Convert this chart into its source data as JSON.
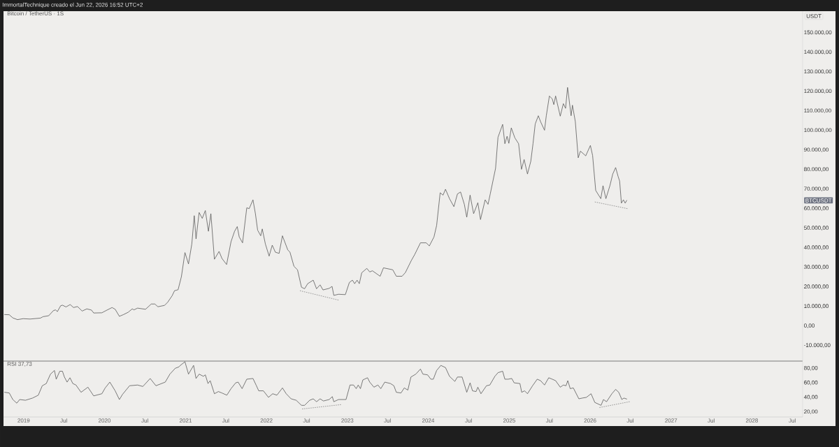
{
  "chart_data": [
    {
      "type": "line",
      "title": "Bitcoin / TetherUS · 1S",
      "ylabel": "USDT",
      "annotations": [
        "ImmortalTechnique creado el Jun 22, 2026 16:52 UTC+2",
        "BTCUSDT"
      ],
      "xlim": [
        "2018-10-02",
        "2028-08-17"
      ],
      "ylim": [
        -18000,
        161000
      ],
      "yticks": [
        {
          "value": -10000,
          "label": "-10.000,00"
        },
        {
          "value": 0,
          "label": "0,00"
        },
        {
          "value": 10000,
          "label": "10.000,00"
        },
        {
          "value": 20000,
          "label": "20.000,00"
        },
        {
          "value": 30000,
          "label": "30.000,00"
        },
        {
          "value": 40000,
          "label": "40.000,00"
        },
        {
          "value": 50000,
          "label": "50.000,00"
        },
        {
          "value": 60000,
          "label": "60.000,00"
        },
        {
          "value": 70000,
          "label": "70.000,00"
        },
        {
          "value": 80000,
          "label": "80.000,00"
        },
        {
          "value": 90000,
          "label": "90.000,00"
        },
        {
          "value": 100000,
          "label": "100.000,00"
        },
        {
          "value": 110000,
          "label": "110.000,00"
        },
        {
          "value": 120000,
          "label": "120.000,00"
        },
        {
          "value": 130000,
          "label": "130.000,00"
        },
        {
          "value": 140000,
          "label": "140.000,00"
        },
        {
          "value": 150000,
          "label": "150.000,00"
        }
      ],
      "tick_labels": "y",
      "series": [
        {
          "color": "#505050",
          "x": [
            "2018-10-07",
            "2018-10-28",
            "2018-11-13",
            "2018-12-04",
            "2018-12-30",
            "2019-01-30",
            "2019-03-18",
            "2019-03-29",
            "2019-04-24",
            "2019-05-15",
            "2019-05-25",
            "2019-06-02",
            "2019-06-17",
            "2019-06-25",
            "2019-07-11",
            "2019-07-30",
            "2019-08-14",
            "2019-09-01",
            "2019-09-22",
            "2019-10-13",
            "2019-11-03",
            "2019-11-13",
            "2019-12-20",
            "2020-01-09",
            "2020-02-04",
            "2020-02-18",
            "2020-03-08",
            "2020-03-27",
            "2020-04-17",
            "2020-05-05",
            "2020-05-13",
            "2020-05-29",
            "2020-07-04",
            "2020-07-30",
            "2020-08-15",
            "2020-08-29",
            "2020-09-28",
            "2020-10-12",
            "2020-11-01",
            "2020-11-12",
            "2020-11-28",
            "2020-12-13",
            "2020-12-29",
            "2021-01-14",
            "2021-01-29",
            "2021-02-09",
            "2021-02-17",
            "2021-03-03",
            "2021-03-17",
            "2021-03-31",
            "2021-04-14",
            "2021-04-25",
            "2021-05-11",
            "2021-06-01",
            "2021-06-14",
            "2021-07-05",
            "2021-07-25",
            "2021-08-10",
            "2021-08-22",
            "2021-08-31",
            "2021-09-15",
            "2021-10-04",
            "2021-10-15",
            "2021-11-01",
            "2021-11-12",
            "2021-11-22",
            "2021-12-06",
            "2021-12-13",
            "2021-12-27",
            "2022-01-13",
            "2022-01-27",
            "2022-02-10",
            "2022-02-27",
            "2022-03-14",
            "2022-04-07",
            "2022-04-17",
            "2022-05-05",
            "2022-05-21",
            "2022-06-08",
            "2022-06-22",
            "2022-07-06",
            "2022-07-31",
            "2022-08-15",
            "2022-08-31",
            "2022-09-13",
            "2022-10-11",
            "2022-10-24",
            "2022-11-01",
            "2022-11-22",
            "2022-12-23",
            "2023-01-10",
            "2023-01-24",
            "2023-02-03",
            "2023-02-14",
            "2023-02-24",
            "2023-03-07",
            "2023-03-30",
            "2023-04-12",
            "2023-04-24",
            "2023-05-29",
            "2023-06-13",
            "2023-07-25",
            "2023-08-10",
            "2023-09-05",
            "2023-09-20",
            "2023-10-17",
            "2023-11-01",
            "2023-11-27",
            "2023-12-23",
            "2024-01-06",
            "2024-01-27",
            "2024-02-08",
            "2024-02-24",
            "2024-03-08",
            "2024-03-19",
            "2024-04-06",
            "2024-04-26",
            "2024-05-12",
            "2024-05-26",
            "2024-06-12",
            "2024-06-23",
            "2024-07-08",
            "2024-07-24",
            "2024-08-12",
            "2024-08-24",
            "2024-09-14",
            "2024-09-27",
            "2024-10-07",
            "2024-10-31",
            "2024-11-11",
            "2024-12-02",
            "2024-12-12",
            "2024-12-22",
            "2024-12-30",
            "2025-01-10",
            "2025-01-26",
            "2025-02-12",
            "2025-02-25",
            "2025-03-09",
            "2025-03-24",
            "2025-04-08",
            "2025-04-18",
            "2025-04-28",
            "2025-05-12",
            "2025-05-22",
            "2025-06-09",
            "2025-06-17",
            "2025-07-01",
            "2025-07-14",
            "2025-07-21",
            "2025-07-29",
            "2025-08-19",
            "2025-09-02",
            "2025-09-12",
            "2025-09-21",
            "2025-10-07",
            "2025-10-13",
            "2025-10-26",
            "2025-11-08",
            "2025-11-18",
            "2025-12-12",
            "2026-01-02",
            "2026-01-12",
            "2026-01-26",
            "2026-02-18",
            "2026-02-28",
            "2026-03-13",
            "2026-03-31",
            "2026-04-13",
            "2026-04-26",
            "2026-05-07",
            "2026-05-14",
            "2026-05-22",
            "2026-05-31",
            "2026-06-08",
            "2026-06-15"
          ],
          "values": [
            5800,
            5700,
            4100,
            3200,
            3700,
            3500,
            4000,
            4700,
            5200,
            7800,
            8200,
            7300,
            10300,
            10600,
            9700,
            10900,
            9400,
            9900,
            7600,
            8700,
            8100,
            6600,
            6700,
            7900,
            9400,
            8500,
            4900,
            5800,
            7000,
            8700,
            8200,
            9100,
            8500,
            11200,
            11200,
            9800,
            10500,
            12100,
            15400,
            18000,
            18500,
            25200,
            37500,
            31700,
            41900,
            56400,
            44500,
            58000,
            55000,
            59000,
            48400,
            57400,
            34100,
            38100,
            34500,
            31400,
            43100,
            48400,
            50800,
            45500,
            42500,
            60400,
            60000,
            64500,
            57400,
            49000,
            46100,
            49600,
            41900,
            35700,
            41300,
            37700,
            37100,
            46100,
            38900,
            37700,
            30500,
            28700,
            19800,
            19000,
            21600,
            23400,
            19000,
            21000,
            18400,
            19200,
            20200,
            15600,
            16200,
            16000,
            22200,
            23400,
            21600,
            23400,
            21600,
            27200,
            29400,
            27600,
            28200,
            25400,
            29700,
            28700,
            25400,
            25400,
            27300,
            33500,
            36500,
            42500,
            42500,
            40900,
            45500,
            51400,
            68100,
            66900,
            69900,
            65100,
            61000,
            67500,
            68500,
            62200,
            55600,
            66900,
            57400,
            63000,
            54400,
            64500,
            62200,
            67500,
            80600,
            96500,
            103100,
            93200,
            97000,
            93400,
            101300,
            96200,
            93200,
            80100,
            85100,
            77700,
            84200,
            93200,
            103300,
            107500,
            104500,
            100100,
            107500,
            117600,
            116100,
            113200,
            117600,
            107300,
            113700,
            111300,
            122000,
            107500,
            112900,
            104500,
            86000,
            89400,
            87000,
            92300,
            87200,
            69300,
            65100,
            71700,
            65100,
            71700,
            77700,
            81000,
            76500,
            74100,
            62800,
            64500,
            62800,
            64200
          ]
        },
        {
          "type": "line",
          "line_style": "dotted",
          "color": "#808080",
          "x": [
            "2022-06-01",
            "2022-11-22"
          ],
          "values": [
            18000,
            13200
          ]
        },
        {
          "type": "line",
          "line_style": "dotted",
          "color": "#808080",
          "x": [
            "2026-01-22",
            "2026-06-18"
          ],
          "values": [
            63400,
            60000
          ]
        }
      ]
    },
    {
      "type": "line",
      "title": "RSI 37,73",
      "xlim": [
        "2018-10-02",
        "2028-08-17"
      ],
      "ylim": [
        13,
        89
      ],
      "xticks": [
        {
          "value": "2019-01-01",
          "label": "2019"
        },
        {
          "value": "2019-07-01",
          "label": "Jul"
        },
        {
          "value": "2020-01-01",
          "label": "2020"
        },
        {
          "value": "2020-07-01",
          "label": "Jul"
        },
        {
          "value": "2021-01-01",
          "label": "2021"
        },
        {
          "value": "2021-07-01",
          "label": "Jul"
        },
        {
          "value": "2022-01-01",
          "label": "2022"
        },
        {
          "value": "2022-07-01",
          "label": "Jul"
        },
        {
          "value": "2023-01-01",
          "label": "2023"
        },
        {
          "value": "2023-07-01",
          "label": "Jul"
        },
        {
          "value": "2024-01-01",
          "label": "2024"
        },
        {
          "value": "2024-07-01",
          "label": "Jul"
        },
        {
          "value": "2025-01-01",
          "label": "2025"
        },
        {
          "value": "2025-07-01",
          "label": "Jul"
        },
        {
          "value": "2026-01-01",
          "label": "2026"
        },
        {
          "value": "2026-07-01",
          "label": "Jul"
        },
        {
          "value": "2027-01-01",
          "label": "2027"
        },
        {
          "value": "2027-07-01",
          "label": "Jul"
        },
        {
          "value": "2028-01-01",
          "label": "2028"
        },
        {
          "value": "2028-07-01",
          "label": "Jul"
        }
      ],
      "yticks": [
        {
          "value": 20,
          "label": "20,00"
        },
        {
          "value": 40,
          "label": "40,00"
        },
        {
          "value": 60,
          "label": "60,00"
        },
        {
          "value": 80,
          "label": "80,00"
        }
      ],
      "series": [
        {
          "color": "#505050",
          "x": [
            "2018-10-07",
            "2018-10-28",
            "2018-11-13",
            "2018-12-01",
            "2018-12-14",
            "2019-01-09",
            "2019-02-10",
            "2019-03-08",
            "2019-03-26",
            "2019-04-13",
            "2019-05-02",
            "2019-05-20",
            "2019-05-28",
            "2019-06-13",
            "2019-06-25",
            "2019-07-04",
            "2019-07-16",
            "2019-07-29",
            "2019-08-11",
            "2019-08-25",
            "2019-09-17",
            "2019-10-18",
            "2019-11-13",
            "2019-12-20",
            "2020-01-04",
            "2020-01-25",
            "2020-02-18",
            "2020-03-08",
            "2020-03-22",
            "2020-04-23",
            "2020-05-29",
            "2020-06-22",
            "2020-07-25",
            "2020-08-20",
            "2020-10-01",
            "2020-10-22",
            "2020-11-15",
            "2020-12-02",
            "2020-12-08",
            "2020-12-29",
            "2021-01-14",
            "2021-02-06",
            "2021-02-17",
            "2021-03-03",
            "2021-03-22",
            "2021-03-31",
            "2021-04-12",
            "2021-04-22",
            "2021-05-11",
            "2021-05-29",
            "2021-06-14",
            "2021-07-06",
            "2021-07-25",
            "2021-08-15",
            "2021-08-26",
            "2021-09-13",
            "2021-10-04",
            "2021-11-01",
            "2021-11-15",
            "2021-11-27",
            "2021-12-18",
            "2022-01-10",
            "2022-01-29",
            "2022-02-17",
            "2022-03-14",
            "2022-03-31",
            "2022-04-22",
            "2022-05-15",
            "2022-06-08",
            "2022-06-22",
            "2022-07-15",
            "2022-07-31",
            "2022-08-15",
            "2022-08-31",
            "2022-09-15",
            "2022-10-11",
            "2022-10-25",
            "2022-11-01",
            "2022-11-22",
            "2022-12-26",
            "2023-01-13",
            "2023-01-29",
            "2023-02-10",
            "2023-02-19",
            "2023-03-01",
            "2023-03-12",
            "2023-04-02",
            "2023-04-12",
            "2023-05-01",
            "2023-05-19",
            "2023-06-01",
            "2023-06-19",
            "2023-07-15",
            "2023-07-30",
            "2023-08-10",
            "2023-08-31",
            "2023-09-15",
            "2023-10-01",
            "2023-10-15",
            "2023-11-06",
            "2023-11-27",
            "2023-12-08",
            "2023-12-29",
            "2024-01-13",
            "2024-01-24",
            "2024-02-08",
            "2024-02-27",
            "2024-03-19",
            "2024-04-06",
            "2024-04-30",
            "2024-05-12",
            "2024-06-02",
            "2024-06-23",
            "2024-07-08",
            "2024-07-19",
            "2024-08-04",
            "2024-08-12",
            "2024-08-26",
            "2024-09-20",
            "2024-10-05",
            "2024-10-28",
            "2024-11-11",
            "2024-12-02",
            "2024-12-12",
            "2024-12-27",
            "2025-01-12",
            "2025-01-23",
            "2025-02-18",
            "2025-02-26",
            "2025-03-11",
            "2025-03-24",
            "2025-04-16",
            "2025-05-07",
            "2025-05-22",
            "2025-06-09",
            "2025-06-28",
            "2025-07-14",
            "2025-07-29",
            "2025-08-19",
            "2025-09-02",
            "2025-09-14",
            "2025-09-22",
            "2025-10-03",
            "2025-10-17",
            "2025-11-11",
            "2025-11-26",
            "2025-12-15",
            "2026-01-05",
            "2026-01-22",
            "2026-02-19",
            "2026-03-02",
            "2026-03-16",
            "2026-04-09",
            "2026-04-26",
            "2026-05-10",
            "2026-05-24",
            "2026-06-02",
            "2026-06-15"
          ],
          "values": [
            47,
            46,
            37,
            32,
            37,
            36,
            39,
            43,
            56,
            59,
            72,
            77,
            65,
            76,
            76,
            68,
            61,
            67,
            59,
            57,
            47,
            54,
            42,
            45,
            53,
            61,
            49,
            37,
            44,
            56,
            57,
            55,
            66,
            56,
            61,
            72,
            80,
            82,
            84,
            89,
            72,
            84,
            66,
            72,
            69,
            71,
            59,
            63,
            45,
            48,
            46,
            43,
            52,
            60,
            61,
            52,
            65,
            66,
            57,
            49,
            49,
            40,
            45,
            43,
            53,
            45,
            38,
            36,
            29,
            29,
            36,
            38,
            34,
            38,
            35,
            37,
            41,
            34,
            37,
            37,
            57,
            57,
            52,
            57,
            52,
            64,
            67,
            61,
            54,
            57,
            52,
            61,
            59,
            56,
            47,
            46,
            53,
            50,
            68,
            72,
            79,
            72,
            71,
            65,
            65,
            77,
            84,
            81,
            69,
            62,
            68,
            68,
            47,
            60,
            49,
            48,
            54,
            45,
            56,
            57,
            69,
            74,
            76,
            65,
            65,
            66,
            60,
            59,
            47,
            49,
            45,
            56,
            65,
            63,
            57,
            67,
            65,
            63,
            54,
            57,
            56,
            63,
            52,
            53,
            38,
            39,
            40,
            45,
            33,
            29,
            37,
            34,
            45,
            51,
            47,
            37,
            39,
            37.73
          ]
        },
        {
          "type": "line",
          "line_style": "dotted",
          "color": "#808080",
          "x": [
            "2022-06-11",
            "2022-12-03"
          ],
          "values": [
            24,
            30
          ]
        },
        {
          "type": "line",
          "line_style": "dotted",
          "color": "#808080",
          "x": [
            "2026-02-12",
            "2026-06-28"
          ],
          "values": [
            26,
            34
          ]
        }
      ]
    }
  ]
}
